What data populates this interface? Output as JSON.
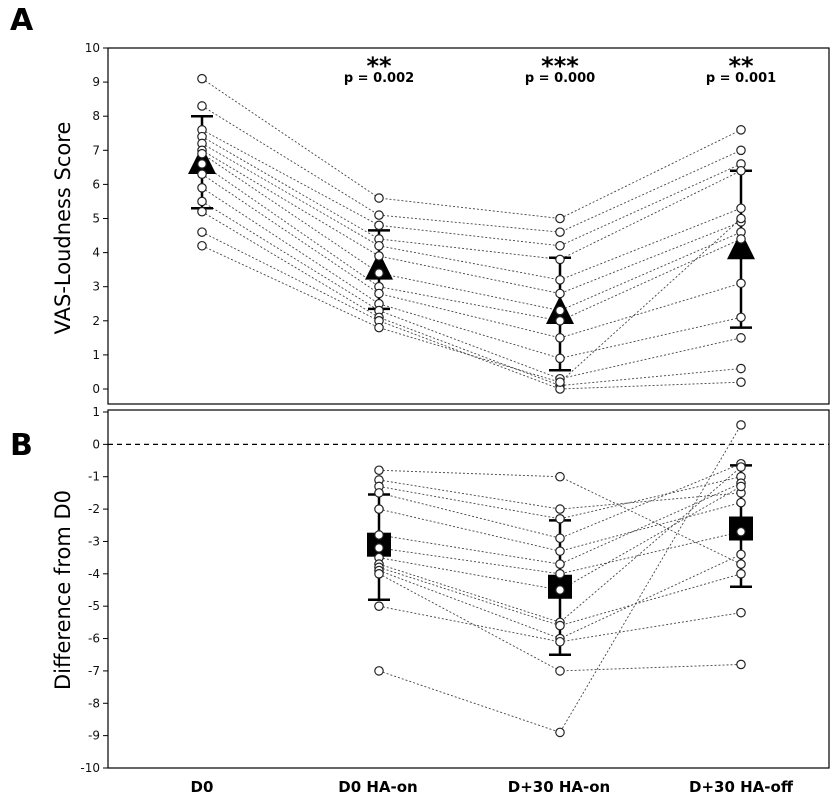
{
  "chart_data": [
    {
      "panel": "A",
      "type": "scatter",
      "ylabel": "VAS-Loudness Score",
      "ylim": [
        0,
        10
      ],
      "yticks": [
        0,
        1,
        2,
        3,
        4,
        5,
        6,
        7,
        8,
        9,
        10
      ],
      "categories": [
        "D0",
        "D0 HA-on",
        "D+30 HA-on",
        "D+30 HA-off"
      ],
      "mean_marker": "triangle",
      "means": [
        6.6,
        3.5,
        2.2,
        4.1
      ],
      "sd_high": [
        8.0,
        4.65,
        3.85,
        6.4
      ],
      "sd_low": [
        5.3,
        2.35,
        0.55,
        1.8
      ],
      "annotations": [
        {
          "category": "D0 HA-on",
          "stars": "**",
          "p": "p = 0.002"
        },
        {
          "category": "D+30 HA-on",
          "stars": "***",
          "p": "p = 0.000"
        },
        {
          "category": "D+30 HA-off",
          "stars": "**",
          "p": "p = 0.001"
        }
      ],
      "subjects": [
        [
          9.1,
          5.6,
          5.0,
          7.6
        ],
        [
          8.3,
          5.1,
          4.6,
          7.0
        ],
        [
          7.6,
          4.8,
          4.2,
          6.6
        ],
        [
          7.4,
          4.4,
          3.8,
          6.4
        ],
        [
          7.2,
          4.2,
          3.2,
          5.3
        ],
        [
          7.0,
          3.9,
          2.8,
          4.9
        ],
        [
          6.9,
          3.4,
          2.3,
          4.6
        ],
        [
          6.6,
          3.0,
          2.0,
          4.4
        ],
        [
          6.3,
          2.8,
          1.5,
          3.1
        ],
        [
          5.9,
          2.5,
          0.9,
          2.1
        ],
        [
          5.5,
          2.3,
          0.3,
          1.5
        ],
        [
          5.2,
          2.1,
          0.1,
          0.6
        ],
        [
          4.6,
          2.0,
          0.0,
          0.2
        ],
        [
          4.2,
          1.8,
          0.2,
          5.0
        ]
      ]
    },
    {
      "panel": "B",
      "type": "scatter",
      "ylabel": "Difference from D0",
      "ylim": [
        -10,
        1
      ],
      "yticks": [
        -10,
        -9,
        -8,
        -7,
        -6,
        -5,
        -4,
        -3,
        -2,
        -1,
        0,
        1
      ],
      "reference_line": 0,
      "categories": [
        "D0 HA-on",
        "D+30 HA-on",
        "D+30 HA-off"
      ],
      "mean_marker": "square",
      "means": [
        -3.1,
        -4.4,
        -2.6
      ],
      "sd_high": [
        -1.55,
        -2.35,
        -0.65
      ],
      "sd_low": [
        -4.8,
        -6.5,
        -4.4
      ],
      "subjects": [
        [
          -0.8,
          -1.0,
          -3.7
        ],
        [
          -1.1,
          -2.0,
          -1.5
        ],
        [
          -1.3,
          -2.3,
          -1.0
        ],
        [
          -1.5,
          -2.9,
          -0.6
        ],
        [
          -2.0,
          -3.3,
          -1.8
        ],
        [
          -2.8,
          -3.7,
          -1.2
        ],
        [
          -3.2,
          -4.0,
          -2.7
        ],
        [
          -3.5,
          -4.5,
          -1.3
        ],
        [
          -3.7,
          -5.5,
          -0.7
        ],
        [
          -3.8,
          -5.6,
          -4.0
        ],
        [
          -3.9,
          -6.0,
          -3.4
        ],
        [
          -4.0,
          -7.0,
          -6.8
        ],
        [
          -5.0,
          -6.1,
          -5.2
        ],
        [
          -7.0,
          -8.9,
          0.6
        ]
      ]
    }
  ],
  "x_axis": {
    "labels": [
      "D0",
      "D0 HA-on",
      "D+30 HA-on",
      "D+30 HA-off"
    ]
  }
}
